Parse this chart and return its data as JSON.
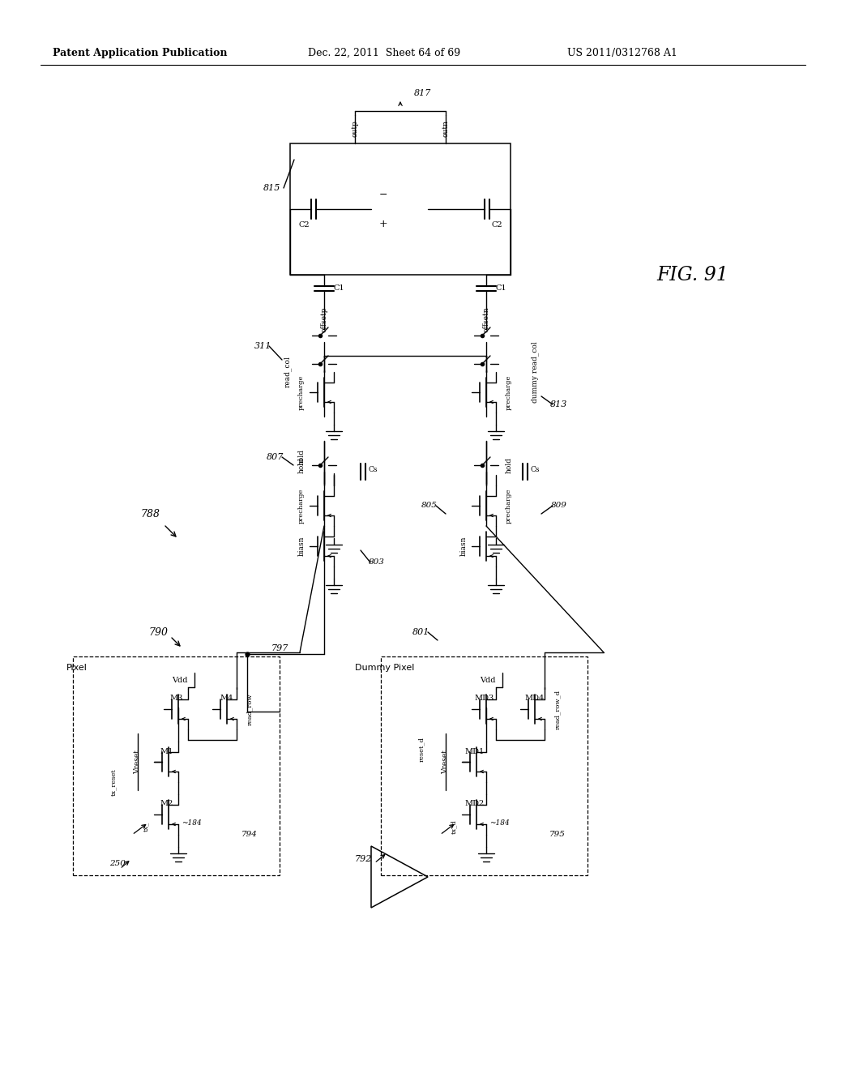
{
  "title_left": "Patent Application Publication",
  "title_mid": "Dec. 22, 2011  Sheet 64 of 69",
  "title_right": "US 2011/0312768 A1",
  "background": "#ffffff",
  "line_color": "#000000",
  "text_color": "#000000"
}
